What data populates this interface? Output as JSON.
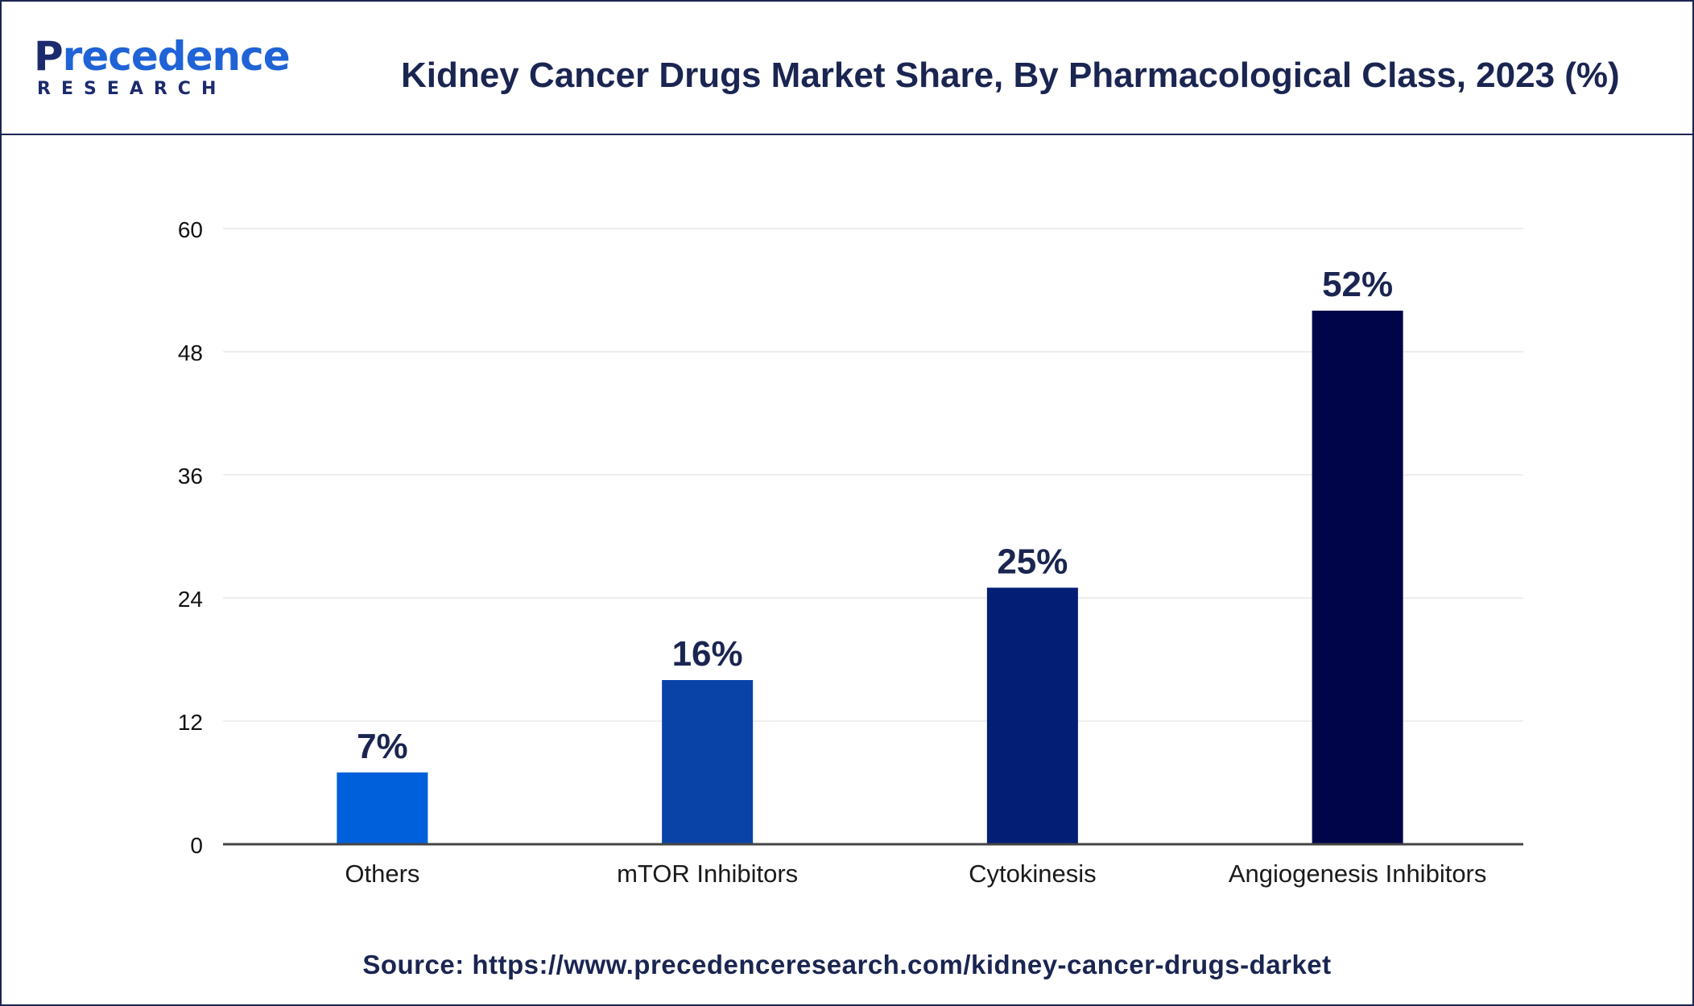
{
  "logo": {
    "main_prefix": "P",
    "main_rest": "recedence",
    "sub": "RESEARCH"
  },
  "title": "Kidney Cancer Drugs Market Share, By Pharmacological Class, 2023 (%)",
  "source": "Source: https://www.precedenceresearch.com/kidney-cancer-drugs-darket",
  "colors": {
    "border": "#1b2551",
    "axis": "#444444",
    "gridline": "#eeeeee",
    "text": "#1b2551",
    "logo_dark": "#1c2b6e",
    "logo_accent": "#1f63d6"
  },
  "chart_data": {
    "type": "bar",
    "title": "Kidney Cancer Drugs Market Share, By Pharmacological Class, 2023 (%)",
    "categories": [
      "Others",
      "mTOR Inhibitors",
      "Cytokinesis",
      "Angiogenesis Inhibitors"
    ],
    "values": [
      7,
      16,
      25,
      52
    ],
    "data_labels": [
      "7%",
      "16%",
      "25%",
      "52%"
    ],
    "bar_colors": [
      "#0060db",
      "#0a43a8",
      "#021f75",
      "#00054a"
    ],
    "xlabel": "",
    "ylabel": "",
    "ylim": [
      0,
      60
    ],
    "yticks": [
      0,
      12,
      24,
      36,
      48,
      60
    ],
    "grid": true,
    "legend": "none"
  }
}
